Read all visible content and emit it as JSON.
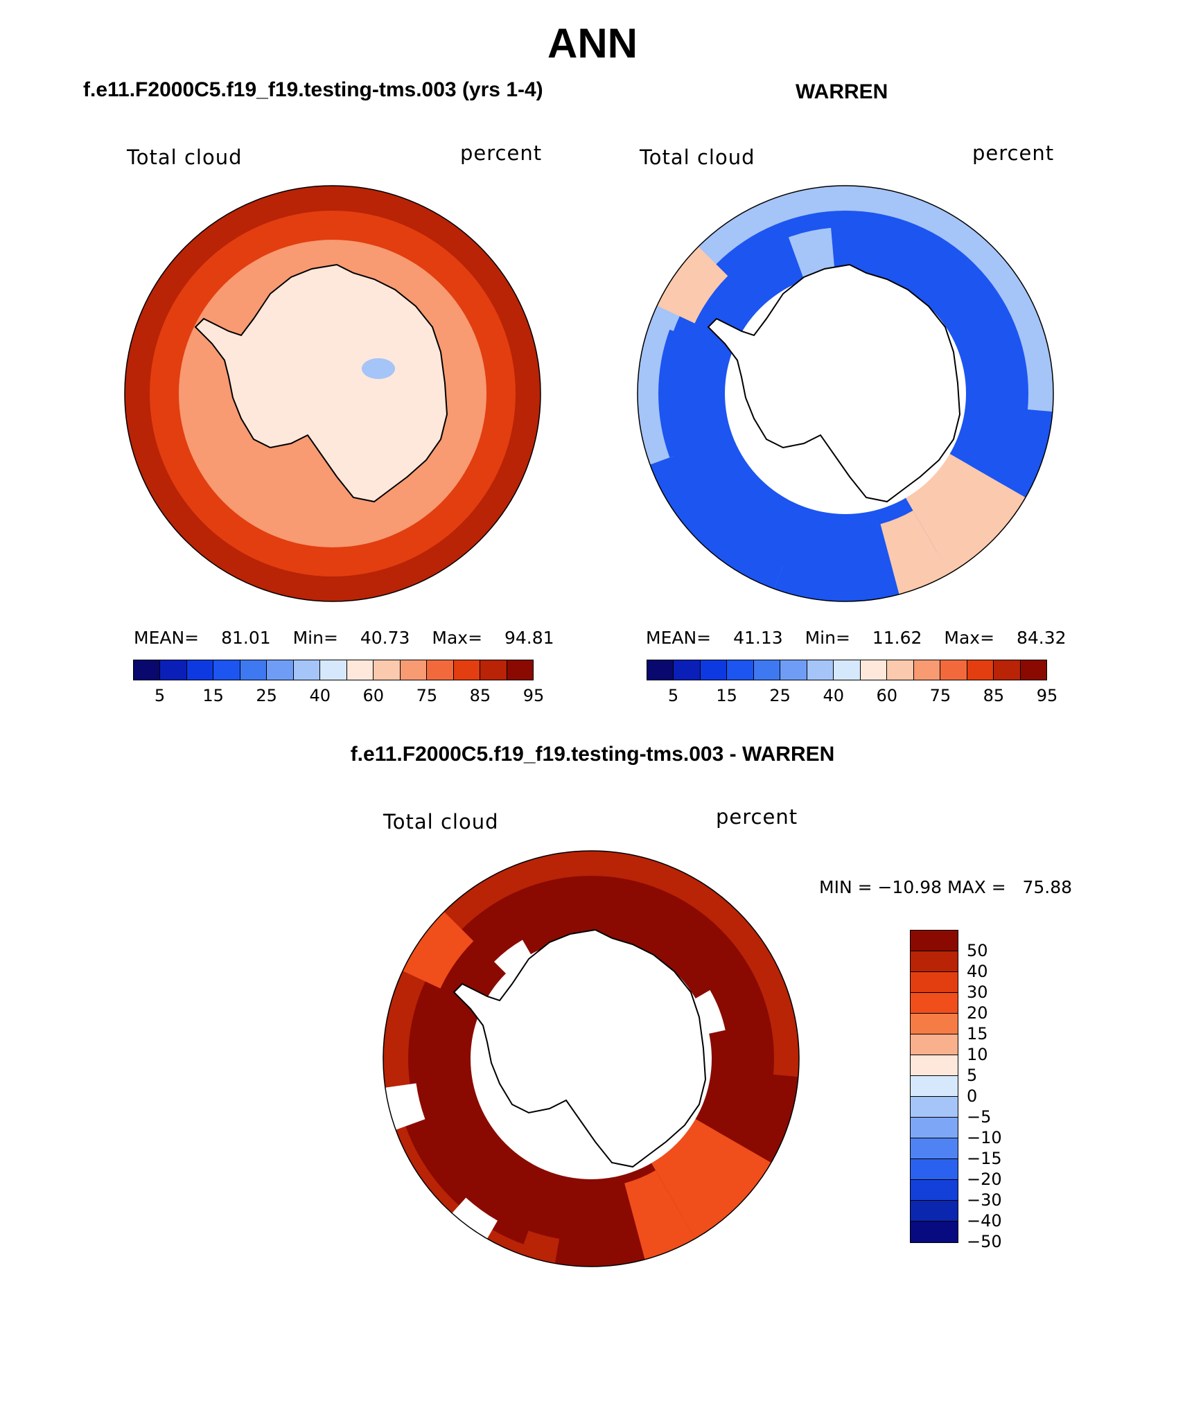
{
  "figure": {
    "title": "ANN",
    "panel1_title": "f.e11.F2000C5.f19_f19.testing-tms.003 (yrs 1-4)",
    "panel2_title": "WARREN",
    "diff_title": "f.e11.F2000C5.f19_f19.testing-tms.003 - WARREN"
  },
  "panels": [
    {
      "label_left": "Total cloud",
      "label_right": "percent",
      "mean_label": "MEAN=",
      "mean": "81.01",
      "min_label": "Min=",
      "min": "40.73",
      "max_label": "Max=",
      "max": "94.81"
    },
    {
      "label_left": "Total cloud",
      "label_right": "percent",
      "mean_label": "MEAN=",
      "mean": "41.13",
      "min_label": "Min=",
      "min": "11.62",
      "max_label": "Max=",
      "max": "84.32"
    },
    {
      "label_left": "Total cloud",
      "label_right": "percent",
      "minmax": "MIN = −10.98 MAX =   75.88"
    }
  ],
  "colors": {
    "abs_scale": [
      "#08086e",
      "#0a1fb8",
      "#0d3ae0",
      "#1c55f0",
      "#3e79f2",
      "#6f9df5",
      "#a5c4f8",
      "#d6e8fb",
      "#fde8db",
      "#fbc9ad",
      "#f89a72",
      "#f26a3c",
      "#e23e10",
      "#b92306",
      "#8a0a02"
    ],
    "diff_scale": [
      "#8a0a02",
      "#b92306",
      "#e23e10",
      "#f04e1b",
      "#f67c46",
      "#f9b08c",
      "#fde8db",
      "#d6e8fb",
      "#a5c4f8",
      "#7ea6f6",
      "#4f83f3",
      "#2a62ef",
      "#1340d9",
      "#0b27b0",
      "#080a80"
    ],
    "land": "#ffffff",
    "outline": "#000000"
  },
  "chart_data": [
    {
      "type": "heatmap",
      "projection": "south polar stereographic",
      "title": "f.e11.F2000C5.f19_f19.testing-tms.003 (yrs 1-4)",
      "variable": "Total cloud",
      "units": "percent",
      "mean": 81.01,
      "min": 40.73,
      "max": 94.81,
      "colorbar_levels": [
        5,
        10,
        15,
        20,
        25,
        30,
        40,
        50,
        60,
        70,
        75,
        80,
        85,
        90,
        95
      ],
      "colorbar_tick_labels": [
        "5",
        "15",
        "25",
        "40",
        "60",
        "75",
        "85",
        "95"
      ],
      "zones": [
        {
          "region": "outer ocean ring",
          "value": 90
        },
        {
          "region": "mid ocean ring",
          "value": 85
        },
        {
          "region": "coastal band",
          "value": 75
        },
        {
          "region": "antarctic interior",
          "value": 60
        },
        {
          "region": "east antarctic plateau minimum",
          "value": 45
        }
      ]
    },
    {
      "type": "heatmap",
      "projection": "south polar stereographic",
      "title": "WARREN",
      "variable": "Total cloud",
      "units": "percent",
      "mean": 41.13,
      "min": 11.62,
      "max": 84.32,
      "colorbar_levels": [
        5,
        10,
        15,
        20,
        25,
        30,
        40,
        50,
        60,
        70,
        75,
        80,
        85,
        90,
        95
      ],
      "colorbar_tick_labels": [
        "5",
        "15",
        "25",
        "40",
        "60",
        "75",
        "85",
        "95"
      ],
      "zones": [
        {
          "region": "outer ring",
          "value": 40
        },
        {
          "region": "pacific sector blocks",
          "value": 20
        },
        {
          "region": "weddell sector",
          "value": 20
        },
        {
          "region": "indian sector blocks",
          "value": 70
        },
        {
          "region": "antarctic interior",
          "value": null
        }
      ]
    },
    {
      "type": "heatmap",
      "projection": "south polar stereographic",
      "title": "f.e11.F2000C5.f19_f19.testing-tms.003 - WARREN",
      "variable": "Total cloud",
      "units": "percent",
      "min": -10.98,
      "max": 75.88,
      "colorbar_levels": [
        50,
        40,
        30,
        20,
        15,
        10,
        5,
        0,
        -5,
        -10,
        -15,
        -20,
        -30,
        -40,
        -50
      ],
      "colorbar_tick_labels": [
        "50",
        "40",
        "30",
        "20",
        "15",
        "10",
        "5",
        "0",
        "−5",
        "−10",
        "−15",
        "−20",
        "−30",
        "−40",
        "−50"
      ],
      "zones": [
        {
          "region": "outer ring",
          "value": 40
        },
        {
          "region": "pacific sector blocks",
          "value": 50
        },
        {
          "region": "indian sector blocks",
          "value": 20
        },
        {
          "region": "antarctic interior",
          "value": null
        }
      ]
    }
  ]
}
